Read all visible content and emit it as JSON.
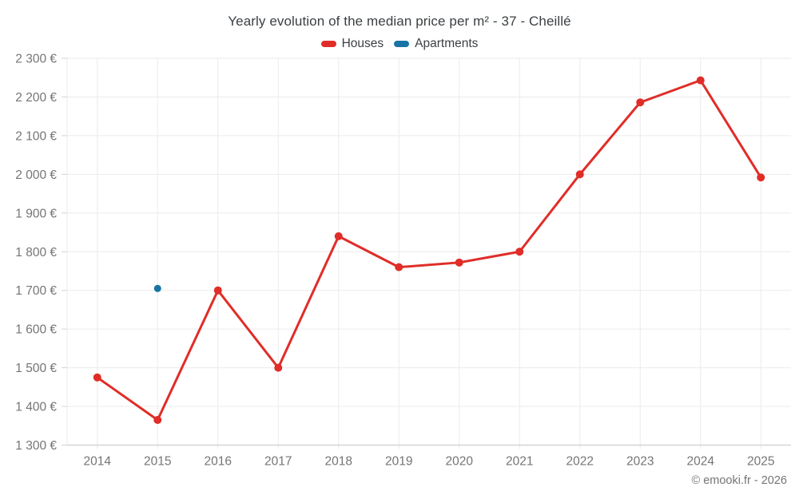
{
  "title": "Yearly evolution of the median price per m² - 37 - Cheillé",
  "footer": "© emooki.fr - 2026",
  "chart_data": {
    "type": "line",
    "title": "Yearly evolution of the median price per m² - 37 - Cheillé",
    "x": [
      "2014",
      "2015",
      "2016",
      "2017",
      "2018",
      "2019",
      "2020",
      "2021",
      "2022",
      "2023",
      "2024",
      "2025"
    ],
    "series": [
      {
        "name": "Houses",
        "color": "#e02d28",
        "values": [
          1475,
          1365,
          1700,
          1500,
          1840,
          1760,
          1772,
          1800,
          2000,
          2186,
          2243,
          1992
        ]
      },
      {
        "name": "Apartments",
        "color": "#1774a5",
        "values": [
          null,
          1705,
          null,
          null,
          null,
          null,
          null,
          null,
          null,
          null,
          null,
          null
        ]
      }
    ],
    "ylim": [
      1300,
      2300
    ],
    "yticks": [
      1300,
      1400,
      1500,
      1600,
      1700,
      1800,
      1900,
      2000,
      2100,
      2200,
      2300
    ],
    "ytick_labels": [
      "1 300 €",
      "1 400 €",
      "1 500 €",
      "1 600 €",
      "1 700 €",
      "1 800 €",
      "1 900 €",
      "2 000 €",
      "2 100 €",
      "2 200 €",
      "2 300 €"
    ],
    "y_unit": "€",
    "grid": true,
    "legend_position": "top"
  }
}
